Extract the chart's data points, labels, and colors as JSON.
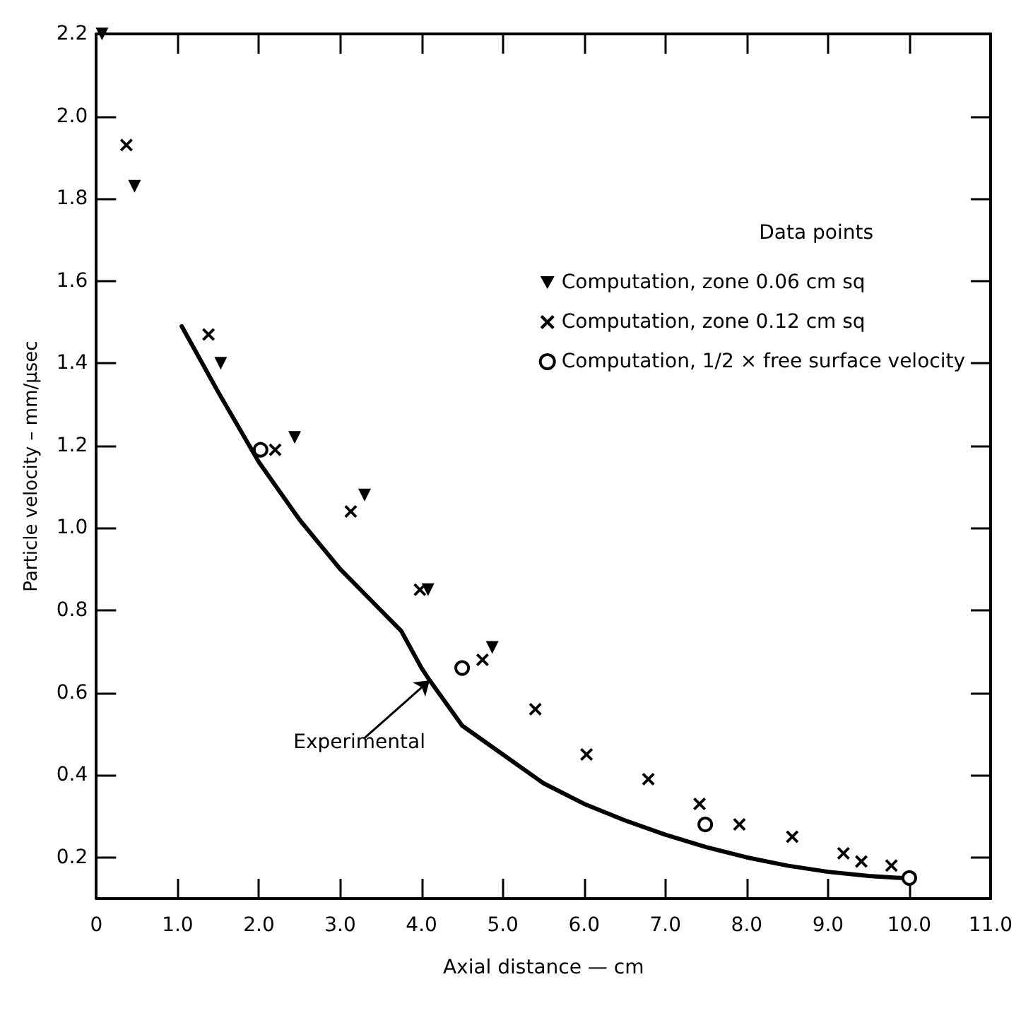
{
  "chart_data": {
    "type": "scatter",
    "xlabel": "Axial distance — cm",
    "ylabel": "Particle velocity – mm/µsec",
    "legend_title": "Data points",
    "legend": "top right",
    "grid": false,
    "xlim": [
      0,
      11
    ],
    "xticks": [
      0,
      {
        "value": 1,
        "label": "1.0"
      },
      {
        "value": 2,
        "label": "2.0"
      },
      {
        "value": 3,
        "label": "3.0"
      },
      {
        "value": 4,
        "label": "4.0"
      },
      {
        "value": 5,
        "label": "5.0"
      },
      {
        "value": 6,
        "label": "6.0"
      },
      {
        "value": 7,
        "label": "7.0"
      },
      {
        "value": 8,
        "label": "8.0"
      },
      {
        "value": 9,
        "label": "9.0"
      },
      {
        "value": 10,
        "label": "10.0"
      },
      {
        "value": 11,
        "label": "11.0"
      }
    ],
    "ylim": [
      0.1,
      2.2
    ],
    "yticks": [
      0.2,
      0.4,
      0.6,
      0.8,
      {
        "value": 1,
        "label": "1.0"
      },
      1.2,
      1.4,
      1.6,
      1.8,
      {
        "value": 2,
        "label": "2.0"
      },
      2.2
    ],
    "annotations": [
      {
        "text": "Experimental",
        "x": 4.1,
        "y": 0.63
      }
    ],
    "series": [
      {
        "name": "Computation, zone 0.06 cm sq",
        "color": "#000000",
        "marker": "triangle",
        "x": [
          0.07,
          0.47,
          1.53,
          2.44,
          3.3,
          4.08,
          4.87
        ],
        "values": [
          2.2,
          1.83,
          1.4,
          1.22,
          1.08,
          0.85,
          0.71
        ]
      },
      {
        "name": "Computation, zone 0.12 cm sq",
        "color": "#000000",
        "marker": "cross",
        "x": [
          0.37,
          1.38,
          2.2,
          3.13,
          3.98,
          4.75,
          5.4,
          6.03,
          6.79,
          7.42,
          7.91,
          8.56,
          9.19,
          9.41,
          9.78
        ],
        "values": [
          1.93,
          1.47,
          1.19,
          1.04,
          0.85,
          0.68,
          0.56,
          0.45,
          0.39,
          0.33,
          0.28,
          0.25,
          0.21,
          0.19,
          0.18
        ]
      },
      {
        "name": "Computation, 1/2 × free surface velocity",
        "color": "#000000",
        "marker": "circle",
        "x": [
          2.02,
          4.5,
          7.49,
          10.0
        ],
        "values": [
          1.19,
          0.66,
          0.28,
          0.15
        ]
      },
      {
        "type": "line",
        "color": "#000000",
        "line_style": "solid",
        "marker": "none",
        "x": [
          1.05,
          1.5,
          2.0,
          2.5,
          3.0,
          3.5,
          3.75,
          4.0,
          4.1,
          4.5,
          5.0,
          5.5,
          6.0,
          6.5,
          7.0,
          7.5,
          8.0,
          8.5,
          9.0,
          9.5,
          9.9
        ],
        "values": [
          1.49,
          1.33,
          1.16,
          1.02,
          0.9,
          0.8,
          0.75,
          0.66,
          0.63,
          0.52,
          0.45,
          0.38,
          0.33,
          0.29,
          0.255,
          0.225,
          0.2,
          0.18,
          0.165,
          0.155,
          0.15
        ]
      }
    ]
  }
}
